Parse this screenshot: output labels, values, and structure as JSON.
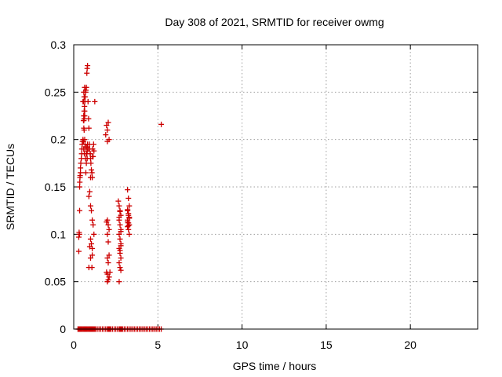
{
  "chart_data": {
    "type": "scatter",
    "title": "Day 308 of 2021, SRMTID for receiver owmg",
    "xlabel": "GPS time / hours",
    "ylabel": "SRMTID / TECUs",
    "xlim": [
      0,
      24
    ],
    "ylim": [
      0,
      0.3
    ],
    "x_ticks": [
      0,
      5,
      10,
      15,
      20
    ],
    "x_tick_labels": [
      "0",
      "5",
      "10",
      "15",
      "20"
    ],
    "y_ticks": [
      0,
      0.05,
      0.1,
      0.15,
      0.2,
      0.25,
      0.3
    ],
    "y_tick_labels": [
      "0",
      "0.05",
      "0.1",
      "0.15",
      "0.2",
      "0.25",
      "0.3"
    ],
    "grid": true,
    "marker": "+",
    "series": [
      {
        "name": "SRMTID",
        "color": "#cc0000",
        "x": [
          0.25,
          0.3,
          0.35,
          0.4,
          0.45,
          0.5,
          0.55,
          0.6,
          0.65,
          0.7,
          0.75,
          0.8,
          0.85,
          0.9,
          0.95,
          1.0,
          1.05,
          1.1,
          1.15,
          1.2,
          1.25,
          1.3,
          1.4,
          1.5,
          1.6,
          1.7,
          1.8,
          1.9,
          2.0,
          2.05,
          2.1,
          2.15,
          2.2,
          2.3,
          2.4,
          2.5,
          2.6,
          2.7,
          2.75,
          2.8,
          2.85,
          2.9,
          3.0,
          3.1,
          3.2,
          3.3,
          3.4,
          3.5,
          3.6,
          3.7,
          3.8,
          3.9,
          4.0,
          4.1,
          4.2,
          4.3,
          4.4,
          4.5,
          4.6,
          4.7,
          4.8,
          4.9,
          5.0,
          5.1,
          5.2,
          0.3,
          0.3,
          0.32,
          0.34,
          0.35,
          0.35,
          0.36,
          0.37,
          0.38,
          0.4,
          0.4,
          0.42,
          0.45,
          0.47,
          0.48,
          0.5,
          0.52,
          0.55,
          0.58,
          0.6,
          0.62,
          0.64,
          0.66,
          0.68,
          0.7,
          0.72,
          0.75,
          0.78,
          0.8,
          0.82,
          0.85,
          0.88,
          0.9,
          0.93,
          0.95,
          0.98,
          1.0,
          1.02,
          1.05,
          1.08,
          1.1,
          1.12,
          1.15,
          1.18,
          1.2,
          1.25,
          0.55,
          0.6,
          0.62,
          0.65,
          0.6,
          0.65,
          0.58,
          0.62,
          0.6,
          0.65,
          0.6,
          0.63,
          0.67,
          0.62,
          0.6,
          0.65,
          0.58,
          0.6,
          0.7,
          0.75,
          0.72,
          0.78,
          0.8,
          0.82,
          0.85,
          0.75,
          0.8,
          0.7,
          0.78,
          0.9,
          0.95,
          1.0,
          1.05,
          1.1,
          1.15,
          1.2,
          1.0,
          1.05,
          0.95,
          1.1,
          1.0,
          0.9,
          1.08,
          1.1,
          1.12,
          0.98,
          1.0,
          1.9,
          1.95,
          2.0,
          2.05,
          2.1,
          2.0,
          1.95,
          2.05,
          2.1,
          2.0,
          2.05,
          2.1,
          2.0,
          2.05,
          1.95,
          2.0,
          2.1,
          2.05,
          2.0,
          2.1,
          2.15,
          2.0,
          2.65,
          2.7,
          2.75,
          2.8,
          2.7,
          2.75,
          2.8,
          2.7,
          2.75,
          2.8,
          2.7,
          2.75,
          2.8,
          2.7,
          2.75,
          2.8,
          2.7,
          2.75,
          2.8,
          2.7,
          2.75,
          2.8,
          3.2,
          3.25,
          3.3,
          3.2,
          3.25,
          3.3,
          3.2,
          3.25,
          3.3,
          3.2,
          3.25,
          3.3,
          3.2,
          3.25,
          3.3,
          3.2,
          3.25,
          5.2
        ],
        "y": [
          0,
          0,
          0,
          0,
          0,
          0,
          0,
          0,
          0,
          0,
          0,
          0,
          0,
          0,
          0,
          0,
          0,
          0,
          0,
          0,
          0,
          0,
          0,
          0,
          0,
          0,
          0,
          0,
          0,
          0,
          0,
          0,
          0,
          0,
          0,
          0,
          0,
          0,
          0,
          0,
          0,
          0,
          0,
          0,
          0,
          0,
          0,
          0,
          0,
          0,
          0,
          0,
          0,
          0,
          0,
          0,
          0,
          0,
          0,
          0,
          0,
          0,
          0,
          0,
          0,
          0.082,
          0.097,
          0.102,
          0.1,
          0.125,
          0.15,
          0.155,
          0.16,
          0.162,
          0.165,
          0.17,
          0.175,
          0.18,
          0.185,
          0.19,
          0.195,
          0.198,
          0.2,
          0.22,
          0.225,
          0.23,
          0.235,
          0.24,
          0.245,
          0.25,
          0.252,
          0.255,
          0.27,
          0.275,
          0.278,
          0.24,
          0.222,
          0.212,
          0.195,
          0.19,
          0.185,
          0.18,
          0.175,
          0.168,
          0.165,
          0.16,
          0.19,
          0.182,
          0.195,
          0.188,
          0.24,
          0.24,
          0.25,
          0.245,
          0.225,
          0.22,
          0.23,
          0.24,
          0.222,
          0.225,
          0.2,
          0.19,
          0.185,
          0.195,
          0.21,
          0.212,
          0.255,
          0.198,
          0.19,
          0.18,
          0.175,
          0.165,
          0.192,
          0.188,
          0.195,
          0.19,
          0.185,
          0.18,
          0.192,
          0.185,
          0.14,
          0.145,
          0.13,
          0.125,
          0.115,
          0.11,
          0.1,
          0.095,
          0.09,
          0.087,
          0.085,
          0.075,
          0.065,
          0.065,
          0.078,
          0.182,
          0.185,
          0.16,
          0.205,
          0.215,
          0.21,
          0.218,
          0.2,
          0.115,
          0.113,
          0.11,
          0.105,
          0.1,
          0.092,
          0.078,
          0.075,
          0.07,
          0.06,
          0.058,
          0.055,
          0.052,
          0.05,
          0.055,
          0.06,
          0.198,
          0.135,
          0.13,
          0.125,
          0.12,
          0.115,
          0.11,
          0.105,
          0.1,
          0.095,
          0.09,
          0.085,
          0.08,
          0.075,
          0.07,
          0.065,
          0.062,
          0.05,
          0.083,
          0.088,
          0.118,
          0.124,
          0.103,
          0.147,
          0.138,
          0.13,
          0.125,
          0.12,
          0.118,
          0.115,
          0.112,
          0.11,
          0.108,
          0.105,
          0.1,
          0.126,
          0.122,
          0.117,
          0.113,
          0.109,
          0.216
        ]
      }
    ]
  }
}
